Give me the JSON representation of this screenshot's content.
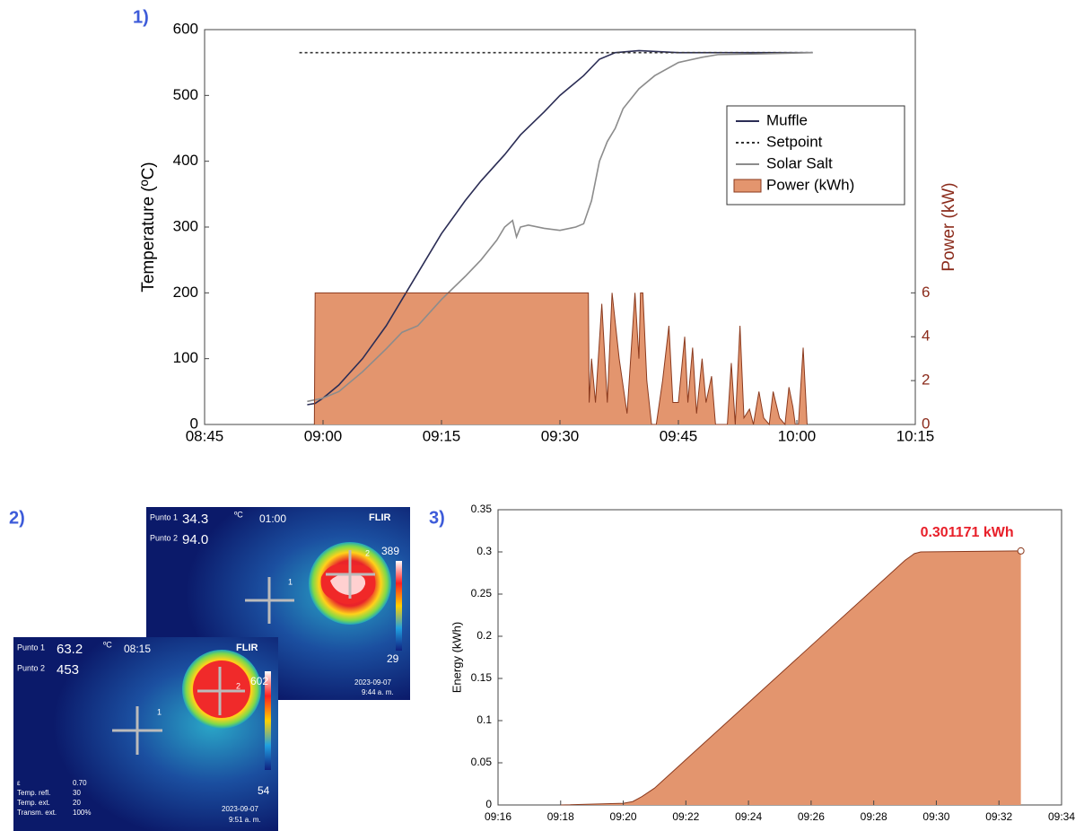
{
  "panels": [
    "1)",
    "2)",
    "3)"
  ],
  "thermal_images": [
    {
      "point1_label": "Punto 1",
      "point1_value": "34.3",
      "unit": "ºC",
      "time": "01:00",
      "brand": "FLIR",
      "point2_label": "Punto 2",
      "point2_value": "94.0",
      "marker1": "1",
      "marker2": "2",
      "scale_max": "389",
      "scale_min": "29",
      "date": "2023-09-07",
      "clock": "9:44 a. m."
    },
    {
      "point1_label": "Punto 1",
      "point1_value": "63.2",
      "unit": "ºC",
      "time": "08:15",
      "brand": "FLIR",
      "point2_label": "Punto 2",
      "point2_value": "453",
      "marker1": "1",
      "marker2": "2",
      "scale_max": "602",
      "scale_min": "54",
      "date": "2023-09-07",
      "clock": "9:51 a. m.",
      "params": [
        [
          "ε",
          "0.70"
        ],
        [
          "Temp. refl.",
          "30"
        ],
        [
          "Temp. ext.",
          "20"
        ],
        [
          "Transm. ext.",
          "100%"
        ]
      ]
    }
  ],
  "chart_data": [
    {
      "type": "line",
      "ylabel": "Temperature (ºC)",
      "y2label": "Power (kW)",
      "xlim": [
        525,
        615
      ],
      "xticks": [
        {
          "value": 525,
          "label": "08:45"
        },
        {
          "value": 540,
          "label": "09:00"
        },
        {
          "value": 555,
          "label": "09:15"
        },
        {
          "value": 570,
          "label": "09:30"
        },
        {
          "value": 585,
          "label": "09:45"
        },
        {
          "value": 600,
          "label": "10:00"
        },
        {
          "value": 615,
          "label": "10:15"
        }
      ],
      "ylim": [
        0,
        600
      ],
      "yticks": [
        0,
        100,
        200,
        300,
        400,
        500,
        600
      ],
      "y2lim": [
        0,
        18
      ],
      "y2ticks": [
        0,
        2,
        4,
        6
      ],
      "y2color": "#8b2b1b",
      "legend": "upper right",
      "series": [
        {
          "name": "Muffle",
          "color": "#2b2d55",
          "x": [
            538,
            539,
            540,
            542,
            545,
            548,
            550,
            552,
            555,
            558,
            560,
            563,
            565,
            568,
            570,
            573,
            575,
            577,
            580,
            585,
            590,
            602
          ],
          "values": [
            30,
            32,
            40,
            60,
            100,
            150,
            190,
            230,
            290,
            340,
            370,
            410,
            440,
            475,
            500,
            530,
            555,
            565,
            568,
            565,
            565,
            565
          ]
        },
        {
          "name": "Setpoint",
          "color": "#333333",
          "dash": "dotted",
          "x": [
            537,
            602
          ],
          "values": [
            565,
            565
          ]
        },
        {
          "name": "Solar Salt",
          "color": "#8c8c8c",
          "x": [
            538,
            540,
            542,
            545,
            548,
            550,
            552,
            555,
            558,
            560,
            562,
            563,
            564,
            564.5,
            565,
            566,
            568,
            570,
            572,
            573,
            574,
            575,
            576,
            577,
            578,
            580,
            582,
            585,
            588,
            590,
            595,
            602
          ],
          "values": [
            35,
            40,
            50,
            80,
            115,
            140,
            150,
            190,
            225,
            250,
            280,
            300,
            310,
            285,
            300,
            303,
            298,
            295,
            300,
            305,
            340,
            400,
            430,
            450,
            480,
            510,
            530,
            550,
            558,
            562,
            563,
            565
          ]
        },
        {
          "name": "Power (kWh)",
          "color": "#e3956e",
          "edge": "#8b3a1e",
          "axis": "y2",
          "fill": true,
          "x": [
            538.9,
            539,
            573.6,
            573.7,
            574,
            574.5,
            575.3,
            576,
            576.6,
            577.5,
            578.5,
            579.5,
            580,
            580.2,
            580.5,
            581,
            581.6,
            582.2,
            583,
            583.8,
            584.3,
            585,
            585.8,
            586.2,
            586.8,
            587.3,
            588,
            588.5,
            589.2,
            589.7,
            591.2,
            591.7,
            592.2,
            592.8,
            593.3,
            594,
            594.5,
            595.2,
            595.8,
            596.5,
            597,
            597.8,
            598.5,
            599,
            599.5,
            599.8,
            600.2,
            600.8,
            601.3
          ],
          "values": [
            0,
            6,
            6,
            1,
            3,
            1,
            5.5,
            1,
            6,
            3,
            0.5,
            6,
            3,
            6,
            6,
            2,
            0,
            0,
            2,
            4.5,
            1,
            1,
            4,
            1,
            3.5,
            0.5,
            3,
            1,
            2.2,
            0,
            0,
            2.8,
            0,
            4.5,
            0.3,
            0.7,
            0,
            1.5,
            0.3,
            0,
            1.5,
            0.3,
            0,
            1.7,
            0.8,
            0,
            0,
            3.5,
            0
          ]
        }
      ]
    },
    {
      "type": "area",
      "ylabel": "Energy (kWh)",
      "xlim": [
        556,
        574
      ],
      "xticks": [
        {
          "value": 556,
          "label": "09:16"
        },
        {
          "value": 558,
          "label": "09:18"
        },
        {
          "value": 560,
          "label": "09:20"
        },
        {
          "value": 562,
          "label": "09:22"
        },
        {
          "value": 564,
          "label": "09:24"
        },
        {
          "value": 566,
          "label": "09:26"
        },
        {
          "value": 568,
          "label": "09:28"
        },
        {
          "value": 570,
          "label": "09:30"
        },
        {
          "value": 572,
          "label": "09:32"
        },
        {
          "value": 574,
          "label": "09:34"
        }
      ],
      "ylim": [
        0,
        0.35
      ],
      "yticks": [
        0,
        0.05,
        0.1,
        0.15,
        0.2,
        0.25,
        0.3,
        0.35
      ],
      "series": [
        {
          "color": "#e3956e",
          "edge": "#8b3a1e",
          "fill": true,
          "x": [
            558,
            560,
            560.3,
            560.6,
            561,
            569,
            569.3,
            569.5,
            572.7
          ],
          "values": [
            0,
            0.002,
            0.004,
            0.01,
            0.02,
            0.29,
            0.298,
            0.3,
            0.301171
          ]
        }
      ],
      "annotation": {
        "x": 572.7,
        "y": 0.301171,
        "label": "0.301171 kWh",
        "color": "#e8202a"
      }
    }
  ]
}
